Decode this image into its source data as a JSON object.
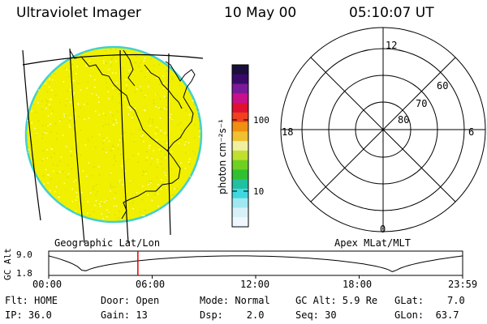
{
  "header": {
    "title": "Ultraviolet Imager",
    "date": "10 May 00",
    "time": "05:10:07 UT"
  },
  "colorbar": {
    "unit_label": "photon cm⁻²s⁻¹",
    "tick_100": "100",
    "tick_10": "10",
    "colors": [
      "#1a0f3a",
      "#3a0a6a",
      "#7a1a9a",
      "#c8108a",
      "#e01030",
      "#f04020",
      "#f09010",
      "#f0c030",
      "#f0f0a0",
      "#c0e030",
      "#70d020",
      "#30c030",
      "#20c0a0",
      "#40d8e0",
      "#a0e8f0",
      "#d8f0f8",
      "#f0f8ff"
    ]
  },
  "left_panel": {
    "caption": "Geographic Lat/Lon",
    "disk_color": "#f0f000",
    "limb_color": "#40d0d0"
  },
  "polar_plot": {
    "caption": "Apex MLat/MLT",
    "mlt_labels": {
      "top": "12",
      "right": "6",
      "bottom": "0",
      "left": "18"
    },
    "lat_labels": [
      "60",
      "70",
      "80"
    ]
  },
  "altitude_plot": {
    "ylabel": "GC Alt",
    "y_top": "9.0",
    "y_bottom": "1.8",
    "x_ticks": [
      "00:00",
      "06:00",
      "12:00",
      "18:00",
      "23:59"
    ],
    "marker_color": "#e00000",
    "marker_hour": 5.17
  },
  "info": {
    "flt": "Flt: HOME",
    "ip": "IP: 36.0",
    "door": "Door: Open",
    "gain": "Gain: 13",
    "mode": "Mode: Normal",
    "dsp": "Dsp:    2.0",
    "gc_alt": "GC Alt: 5.9 Re",
    "seq": "Seq: 30",
    "glat": "GLat:    7.0",
    "glon": "GLon:  63.7"
  }
}
